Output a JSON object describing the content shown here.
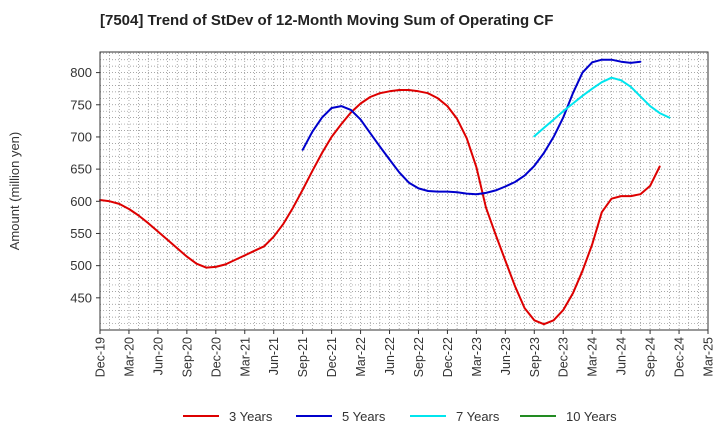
{
  "title": "[7504]  Trend of StDev of 12-Month Moving Sum of Operating CF",
  "chart_data": {
    "type": "line",
    "title": "[7504]  Trend of StDev of 12-Month Moving Sum of Operating CF",
    "xlabel": "",
    "ylabel": "Amount (million yen)",
    "x_ticks": [
      "Dec-19",
      "Mar-20",
      "Jun-20",
      "Sep-20",
      "Dec-20",
      "Mar-21",
      "Jun-21",
      "Sep-21",
      "Dec-21",
      "Mar-22",
      "Jun-22",
      "Sep-22",
      "Dec-22",
      "Mar-23",
      "Jun-23",
      "Sep-23",
      "Dec-23",
      "Mar-24",
      "Jun-24",
      "Sep-24",
      "Dec-24",
      "Mar-25"
    ],
    "y_ticks": [
      450,
      500,
      550,
      600,
      650,
      700,
      750,
      800
    ],
    "ylim": [
      400,
      832
    ],
    "x_range_months": [
      0,
      63
    ],
    "grid": true,
    "legend_position": "bottom",
    "series": [
      {
        "name": "3 Years",
        "color": "#dd0000",
        "start_month": 0,
        "values": [
          602,
          600,
          596,
          588,
          578,
          566,
          553,
          540,
          527,
          514,
          503,
          497,
          498,
          502,
          509,
          516,
          523,
          530,
          545,
          565,
          590,
          618,
          647,
          675,
          700,
          720,
          738,
          752,
          762,
          768,
          771,
          773,
          773,
          771,
          768,
          760,
          748,
          728,
          698,
          653,
          590,
          548,
          508,
          468,
          434,
          415,
          409,
          415,
          431,
          457,
          492,
          533,
          583,
          604,
          608,
          608,
          611,
          624,
          654
        ]
      },
      {
        "name": "5 Years",
        "color": "#0000cc",
        "start_month": 21,
        "values": [
          680,
          708,
          730,
          745,
          748,
          742,
          727,
          706,
          685,
          665,
          645,
          629,
          620,
          616,
          615,
          615,
          614,
          612,
          611,
          613,
          617,
          623,
          630,
          640,
          655,
          675,
          700,
          730,
          768,
          800,
          816,
          820,
          820,
          817,
          815,
          817
        ]
      },
      {
        "name": "7 Years",
        "color": "#00e5ee",
        "start_month": 45,
        "values": [
          701,
          714,
          727,
          740,
          752,
          764,
          775,
          785,
          792,
          788,
          778,
          763,
          748,
          737,
          730
        ]
      },
      {
        "name": "10 Years",
        "color": "#228b22",
        "start_month": 0,
        "values": []
      }
    ]
  }
}
